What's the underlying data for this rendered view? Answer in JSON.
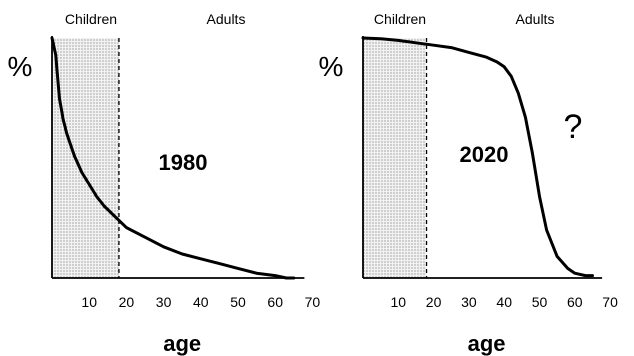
{
  "chart_data": [
    {
      "type": "line",
      "title": "1980",
      "xlabel": "age",
      "ylabel": "%",
      "xlim": [
        0,
        70
      ],
      "xticks": [
        10,
        20,
        30,
        40,
        50,
        60,
        70
      ],
      "shaded_region": {
        "from": 0,
        "to": 18,
        "pattern": "dotted"
      },
      "region_labels": [
        "Children",
        "Adults"
      ],
      "annotation": "",
      "x": [
        0,
        1,
        2,
        3,
        4,
        6,
        8,
        10,
        12,
        14,
        16,
        18,
        20,
        25,
        30,
        35,
        40,
        45,
        50,
        55,
        60,
        63,
        65
      ],
      "y": [
        100,
        93,
        75,
        66,
        60,
        51,
        44,
        39,
        34,
        30,
        27,
        24,
        21,
        17,
        13,
        10,
        8,
        6,
        4,
        2,
        1,
        0,
        0
      ]
    },
    {
      "type": "line",
      "title": "2020",
      "xlabel": "age",
      "ylabel": "%",
      "xlim": [
        0,
        70
      ],
      "xticks": [
        10,
        20,
        30,
        40,
        50,
        60,
        70
      ],
      "shaded_region": {
        "from": 0,
        "to": 18,
        "pattern": "dotted"
      },
      "region_labels": [
        "Children",
        "Adults"
      ],
      "annotation": "?",
      "x": [
        0,
        5,
        10,
        15,
        20,
        25,
        30,
        35,
        38,
        40,
        42,
        44,
        46,
        48,
        50,
        52,
        55,
        58,
        60,
        63,
        65
      ],
      "y": [
        100,
        99.7,
        99,
        98,
        97,
        96,
        94,
        92,
        90,
        88,
        84,
        77,
        67,
        52,
        34,
        20,
        9,
        4,
        2,
        1,
        1
      ]
    }
  ]
}
